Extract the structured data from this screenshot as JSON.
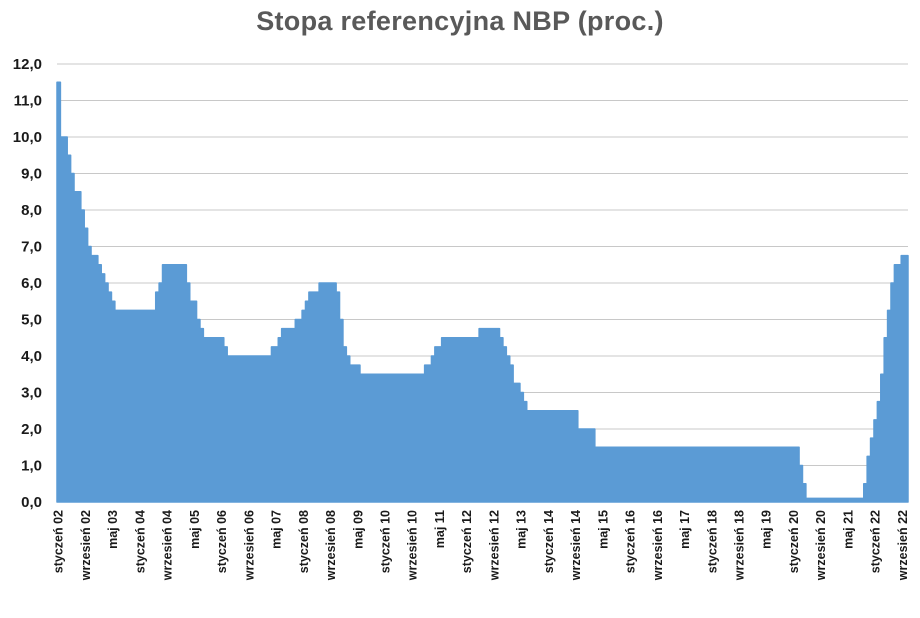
{
  "chart_data": {
    "type": "area",
    "title": "Stopa referencyjna NBP (proc.)",
    "xlabel": "",
    "ylabel": "",
    "ylim": [
      0,
      12
    ],
    "y_ticks": [
      "0,0",
      "1,0",
      "2,0",
      "3,0",
      "4,0",
      "5,0",
      "6,0",
      "7,0",
      "8,0",
      "9,0",
      "10,0",
      "11,0",
      "12,0"
    ],
    "grid": true,
    "legend": "none",
    "color": "#5B9BD5",
    "x_tick_labels": [
      "styczeń 02",
      "wrzesień 02",
      "maj 03",
      "styczeń 04",
      "wrzesień 04",
      "maj 05",
      "styczeń 06",
      "wrzesień 06",
      "maj 07",
      "styczeń 08",
      "wrzesień 08",
      "maj 09",
      "styczeń 10",
      "wrzesień 10",
      "maj 11",
      "styczeń 12",
      "wrzesień 12",
      "maj 13",
      "styczeń 14",
      "wrzesień 14",
      "maj 15",
      "styczeń 16",
      "wrzesień 16",
      "maj 17",
      "styczeń 18",
      "wrzesień 18",
      "maj 19",
      "styczeń 20",
      "wrzesień 20",
      "maj 21",
      "styczeń 22",
      "wrzesień 22"
    ],
    "x_tick_every_months": 8,
    "x_start": "2002-01",
    "x_end": "2022-10",
    "series": [
      {
        "name": "Stopa referencyjna NBP",
        "frequency": "monthly",
        "values": [
          11.5,
          10.0,
          10.0,
          9.5,
          9.0,
          8.5,
          8.5,
          8.0,
          7.5,
          7.0,
          6.75,
          6.75,
          6.5,
          6.25,
          6.0,
          5.75,
          5.5,
          5.25,
          5.25,
          5.25,
          5.25,
          5.25,
          5.25,
          5.25,
          5.25,
          5.25,
          5.25,
          5.25,
          5.25,
          5.75,
          6.0,
          6.5,
          6.5,
          6.5,
          6.5,
          6.5,
          6.5,
          6.5,
          6.0,
          5.5,
          5.5,
          5.0,
          4.75,
          4.5,
          4.5,
          4.5,
          4.5,
          4.5,
          4.5,
          4.25,
          4.0,
          4.0,
          4.0,
          4.0,
          4.0,
          4.0,
          4.0,
          4.0,
          4.0,
          4.0,
          4.0,
          4.0,
          4.0,
          4.25,
          4.25,
          4.5,
          4.75,
          4.75,
          4.75,
          4.75,
          5.0,
          5.0,
          5.25,
          5.5,
          5.75,
          5.75,
          5.75,
          6.0,
          6.0,
          6.0,
          6.0,
          6.0,
          5.75,
          5.0,
          4.25,
          4.0,
          3.75,
          3.75,
          3.75,
          3.5,
          3.5,
          3.5,
          3.5,
          3.5,
          3.5,
          3.5,
          3.5,
          3.5,
          3.5,
          3.5,
          3.5,
          3.5,
          3.5,
          3.5,
          3.5,
          3.5,
          3.5,
          3.5,
          3.75,
          3.75,
          4.0,
          4.25,
          4.25,
          4.5,
          4.5,
          4.5,
          4.5,
          4.5,
          4.5,
          4.5,
          4.5,
          4.5,
          4.5,
          4.5,
          4.75,
          4.75,
          4.75,
          4.75,
          4.75,
          4.75,
          4.5,
          4.25,
          4.0,
          3.75,
          3.25,
          3.25,
          3.0,
          2.75,
          2.5,
          2.5,
          2.5,
          2.5,
          2.5,
          2.5,
          2.5,
          2.5,
          2.5,
          2.5,
          2.5,
          2.5,
          2.5,
          2.5,
          2.5,
          2.0,
          2.0,
          2.0,
          2.0,
          2.0,
          1.5,
          1.5,
          1.5,
          1.5,
          1.5,
          1.5,
          1.5,
          1.5,
          1.5,
          1.5,
          1.5,
          1.5,
          1.5,
          1.5,
          1.5,
          1.5,
          1.5,
          1.5,
          1.5,
          1.5,
          1.5,
          1.5,
          1.5,
          1.5,
          1.5,
          1.5,
          1.5,
          1.5,
          1.5,
          1.5,
          1.5,
          1.5,
          1.5,
          1.5,
          1.5,
          1.5,
          1.5,
          1.5,
          1.5,
          1.5,
          1.5,
          1.5,
          1.5,
          1.5,
          1.5,
          1.5,
          1.5,
          1.5,
          1.5,
          1.5,
          1.5,
          1.5,
          1.5,
          1.5,
          1.5,
          1.5,
          1.5,
          1.5,
          1.5,
          1.5,
          1.0,
          0.5,
          0.1,
          0.1,
          0.1,
          0.1,
          0.1,
          0.1,
          0.1,
          0.1,
          0.1,
          0.1,
          0.1,
          0.1,
          0.1,
          0.1,
          0.1,
          0.1,
          0.1,
          0.5,
          1.25,
          1.75,
          2.25,
          2.75,
          3.5,
          4.5,
          5.25,
          6.0,
          6.5,
          6.5,
          6.75,
          6.75
        ]
      }
    ]
  }
}
